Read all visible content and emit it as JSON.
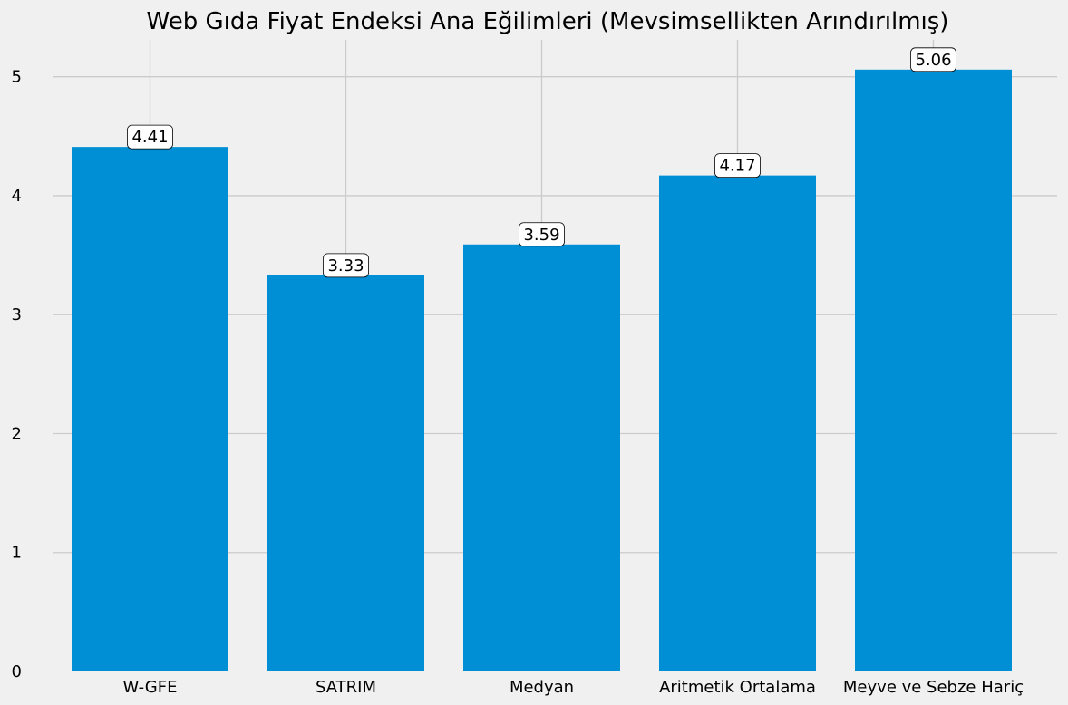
{
  "chart_data": {
    "type": "bar",
    "title": "Web Gıda Fiyat Endeksi Ana Eğilimleri (Mevsimsellikten Arındırılmış)",
    "xlabel": "",
    "ylabel": "",
    "categories": [
      "W-GFE",
      "SATRIM",
      "Medyan",
      "Aritmetik Ortalama",
      "Meyve ve Sebze Hariç"
    ],
    "values": [
      4.41,
      3.33,
      3.59,
      4.17,
      5.06
    ],
    "data_labels": [
      "4.41",
      "3.33",
      "3.59",
      "4.17",
      "5.06"
    ],
    "y_ticks": [
      0,
      1,
      2,
      3,
      4,
      5
    ],
    "y_tick_labels": [
      "0",
      "1",
      "2",
      "3",
      "4",
      "5"
    ],
    "ylim": [
      0,
      5.31
    ],
    "grid": true,
    "bar_color": "#008fd5",
    "background_color": "#f0f0f0",
    "grid_color": "#cbcbcb"
  }
}
